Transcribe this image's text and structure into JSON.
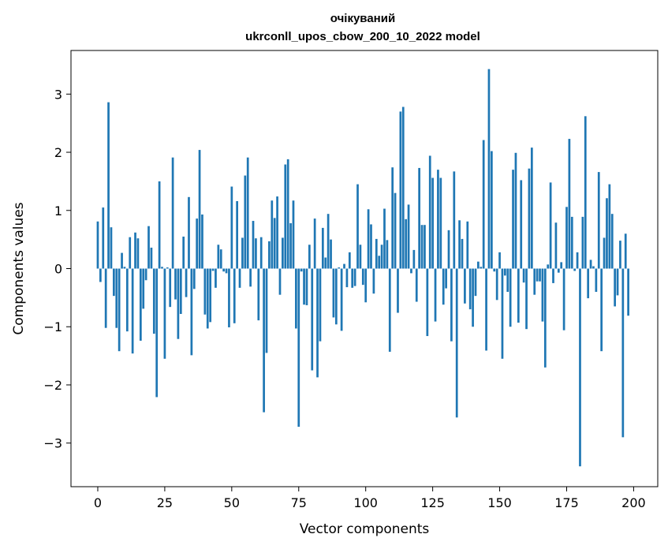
{
  "chart_data": {
    "type": "bar",
    "title_line1": "очікуваний",
    "title_line2": "ukrconll_upos_cbow_200_10_2022 model",
    "xlabel": "Vector components",
    "ylabel": "Components values",
    "xlim": [
      -10,
      209
    ],
    "ylim": [
      -3.75,
      3.75
    ],
    "xticks": [
      0,
      25,
      50,
      75,
      100,
      125,
      150,
      175,
      200
    ],
    "yticks": [
      -3,
      -2,
      -1,
      0,
      1,
      2,
      3
    ],
    "ytick_labels": [
      "−3",
      "−2",
      "−1",
      "0",
      "1",
      "2",
      "3"
    ],
    "grid": false,
    "color": "#1f77b4",
    "values": [
      0.81,
      -0.23,
      1.05,
      -1.02,
      2.86,
      0.71,
      -0.47,
      -1.02,
      -1.42,
      0.27,
      0.03,
      -1.08,
      0.54,
      -1.46,
      0.62,
      0.52,
      -1.24,
      -0.69,
      -0.2,
      0.73,
      0.36,
      -1.12,
      -2.21,
      1.5,
      0.03,
      -1.55,
      0.02,
      -0.66,
      1.91,
      -0.53,
      -1.21,
      -0.78,
      0.55,
      -0.49,
      1.23,
      -1.49,
      -0.35,
      0.86,
      2.04,
      0.93,
      -0.79,
      -1.03,
      -0.92,
      -0.04,
      -0.33,
      0.41,
      0.33,
      -0.05,
      -0.08,
      -1.01,
      1.41,
      -0.94,
      1.16,
      -0.33,
      0.53,
      1.6,
      1.91,
      -0.31,
      0.82,
      0.52,
      -0.89,
      0.54,
      -2.47,
      -1.45,
      0.47,
      1.17,
      0.87,
      1.24,
      -0.45,
      0.53,
      1.79,
      1.88,
      0.78,
      1.17,
      -1.03,
      -2.72,
      -0.05,
      -0.62,
      -0.63,
      0.41,
      -1.75,
      0.86,
      -1.87,
      -1.25,
      0.7,
      0.19,
      0.94,
      0.5,
      -0.84,
      -0.96,
      0.02,
      -1.07,
      0.08,
      -0.32,
      0.28,
      -0.33,
      -0.3,
      1.45,
      0.41,
      -0.28,
      -0.58,
      1.02,
      0.76,
      -0.43,
      0.51,
      0.22,
      0.41,
      1.03,
      0.49,
      -1.43,
      1.74,
      1.3,
      -0.76,
      2.7,
      2.78,
      0.85,
      1.1,
      -0.08,
      0.32,
      -0.57,
      1.73,
      0.75,
      0.75,
      -1.16,
      1.94,
      1.56,
      -0.91,
      1.7,
      1.56,
      -0.62,
      -0.34,
      0.66,
      -1.25,
      1.67,
      -2.56,
      0.83,
      0.51,
      -0.6,
      0.81,
      -0.7,
      -1.0,
      -0.47,
      0.12,
      0.03,
      2.21,
      -1.41,
      3.43,
      2.02,
      -0.05,
      -0.54,
      0.28,
      -1.55,
      -0.12,
      -0.4,
      -1.0,
      1.7,
      1.99,
      -0.93,
      1.52,
      -0.24,
      -1.04,
      1.72,
      2.08,
      -0.45,
      -0.22,
      -0.22,
      -0.91,
      -1.7,
      0.07,
      1.48,
      -0.25,
      0.79,
      -0.07,
      0.11,
      -1.06,
      1.06,
      2.23,
      0.89,
      -0.04,
      0.28,
      -3.4,
      0.89,
      2.62,
      -0.51,
      0.15,
      0.04,
      -0.4,
      1.66,
      -1.42,
      0.53,
      1.21,
      1.45,
      0.94,
      -0.65,
      -0.46,
      0.48,
      -2.9,
      0.6,
      -0.81
    ]
  }
}
